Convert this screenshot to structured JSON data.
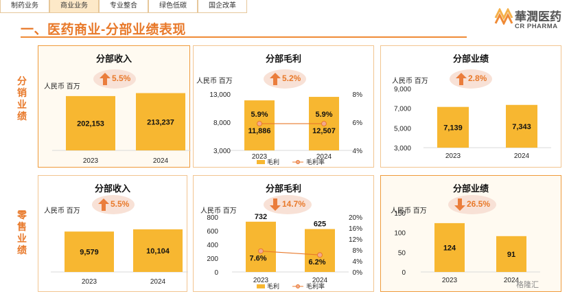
{
  "tabs": [
    {
      "label": "制药业务",
      "active": false
    },
    {
      "label": "商业业务",
      "active": true
    },
    {
      "label": "专业整合",
      "active": false
    },
    {
      "label": "绿色低碳",
      "active": false
    },
    {
      "label": "国企改革",
      "active": false
    }
  ],
  "title": "一、医药商业-分部业绩表现",
  "logo": {
    "cn": "華潤医药",
    "en": "CR PHARMA"
  },
  "sections": {
    "distribution": "分销业绩",
    "retail": "零售业绩"
  },
  "watermark": "格隆汇",
  "colors": {
    "accent": "#e8792a",
    "bar": "#f7b731",
    "badge": "#f8e1d6"
  },
  "chart_data": [
    {
      "type": "bar",
      "title": "分部收入",
      "unit": "人民币 百万",
      "growth": {
        "text": "5.5%",
        "direction": "up"
      },
      "categories": [
        "2023",
        "2024"
      ],
      "series": [
        {
          "values": [
            202153,
            213237
          ]
        }
      ],
      "value_labels": [
        "202,153",
        "213,237"
      ],
      "yticks": [],
      "ylim": [
        0,
        230000
      ]
    },
    {
      "type": "bar+line",
      "title": "分部毛利",
      "unit": "人民币 百万",
      "growth": {
        "text": "5.2%",
        "direction": "up"
      },
      "categories": [
        "2023",
        "2024"
      ],
      "series": [
        {
          "name": "毛利",
          "values": [
            11886,
            12507
          ],
          "labels": [
            "11,886",
            "12,507"
          ]
        },
        {
          "name": "毛利率",
          "values": [
            5.9,
            5.9
          ],
          "labels": [
            "5.9%",
            "5.9%"
          ]
        }
      ],
      "ylim": [
        3000,
        13000
      ],
      "yticks": [
        "13,000",
        "8,000",
        "3,000"
      ],
      "y2lim": [
        4,
        8
      ],
      "y2ticks": [
        "8%",
        "6%",
        "4%"
      ]
    },
    {
      "type": "bar",
      "title": "分部业绩",
      "unit": "人民币 百万",
      "growth": {
        "text": "2.8%",
        "direction": "up"
      },
      "categories": [
        "2023",
        "2024"
      ],
      "series": [
        {
          "values": [
            7139,
            7343
          ]
        }
      ],
      "value_labels": [
        "7,139",
        "7,343"
      ],
      "ylim": [
        3000,
        9000
      ],
      "yticks": [
        "9,000",
        "7,000",
        "5,000",
        "3,000"
      ]
    },
    {
      "type": "bar",
      "title": "分部收入",
      "unit": "人民币 百万",
      "growth": {
        "text": "5.5%",
        "direction": "up"
      },
      "categories": [
        "2023",
        "2024"
      ],
      "series": [
        {
          "values": [
            9579,
            10104
          ]
        }
      ],
      "value_labels": [
        "9,579",
        "10,104"
      ],
      "yticks": [],
      "ylim": [
        0,
        14000
      ]
    },
    {
      "type": "bar+line",
      "title": "分部毛利",
      "unit": "人民币 百万",
      "growth": {
        "text": "14.7%",
        "direction": "down"
      },
      "categories": [
        "2023",
        "2024"
      ],
      "series": [
        {
          "name": "毛利",
          "values": [
            732,
            625
          ],
          "labels": [
            "732",
            "625"
          ]
        },
        {
          "name": "毛利率",
          "values": [
            7.6,
            6.2
          ],
          "labels": [
            "7.6%",
            "6.2%"
          ]
        }
      ],
      "ylim": [
        0,
        800
      ],
      "yticks": [
        "800",
        "600",
        "400",
        "200",
        "0"
      ],
      "y2lim": [
        0,
        20
      ],
      "y2ticks": [
        "20%",
        "16%",
        "12%",
        "8%",
        "4%",
        "0%"
      ]
    },
    {
      "type": "bar",
      "title": "分部业绩",
      "unit": "人民币 百万",
      "growth": {
        "text": "26.5%",
        "direction": "down"
      },
      "categories": [
        "2023",
        "2024"
      ],
      "series": [
        {
          "values": [
            124,
            91
          ]
        }
      ],
      "value_labels": [
        "124",
        "91"
      ],
      "ylim": [
        0,
        150
      ],
      "yticks": [
        "150",
        "100",
        "50",
        "0"
      ]
    }
  ]
}
